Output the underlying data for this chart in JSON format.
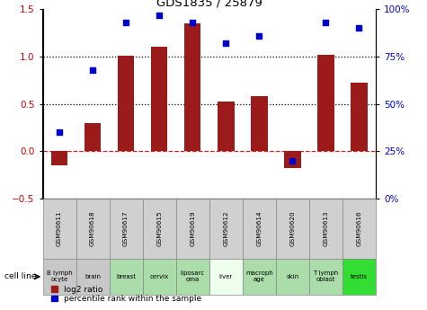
{
  "title": "GDS1835 / 25879",
  "samples": [
    "GSM90611",
    "GSM90618",
    "GSM90617",
    "GSM90615",
    "GSM90619",
    "GSM90612",
    "GSM90614",
    "GSM90620",
    "GSM90613",
    "GSM90616"
  ],
  "cell_lines": [
    "B lymph\nocyte",
    "brain",
    "breast",
    "cervix",
    "liposarc\noma",
    "liver",
    "macroph\nage",
    "skin",
    "T lymph\noblast",
    "testis"
  ],
  "cell_line_colors": [
    "#c8c8c8",
    "#c8c8c8",
    "#aaddaa",
    "#aaddaa",
    "#aaddaa",
    "#eeffee",
    "#aaddaa",
    "#aaddaa",
    "#aaddaa",
    "#33dd33"
  ],
  "log2_ratio": [
    -0.15,
    0.3,
    1.01,
    1.1,
    1.35,
    0.52,
    0.58,
    -0.18,
    1.02,
    0.72
  ],
  "percentile": [
    35,
    68,
    93,
    97,
    93,
    82,
    86,
    20,
    93,
    90
  ],
  "bar_color": "#9b1b1b",
  "dot_color": "#0000cc",
  "ylim_left": [
    -0.5,
    1.5
  ],
  "ylim_right": [
    0,
    100
  ],
  "hline_dotted": [
    0.5,
    1.0
  ],
  "hline_dashed": 0.0,
  "yticks_left": [
    -0.5,
    0,
    0.5,
    1.0,
    1.5
  ],
  "yticks_right": [
    0,
    25,
    50,
    75,
    100
  ],
  "ytick_labels_right": [
    "0%",
    "25%",
    "50%",
    "75%",
    "100%"
  ],
  "legend_labels": [
    "log2 ratio",
    "percentile rank within the sample"
  ],
  "legend_colors": [
    "#9b1b1b",
    "#0000cc"
  ]
}
